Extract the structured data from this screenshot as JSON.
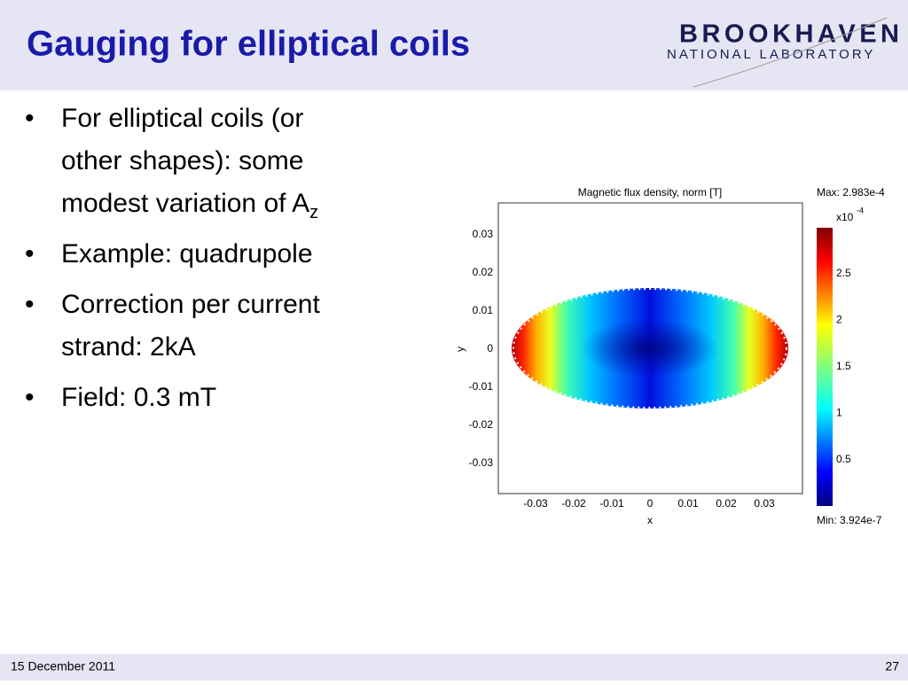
{
  "header": {
    "title": "Gauging for elliptical coils",
    "logo_top": "BROOKHAVEN",
    "logo_bottom": "NATIONAL LABORATORY"
  },
  "bullets": [
    {
      "lines": [
        "For elliptical coils (or",
        "other shapes): some",
        "modest variation of A"
      ],
      "subscript": "z"
    },
    {
      "lines": [
        "Example: quadrupole"
      ]
    },
    {
      "lines": [
        "Correction per current",
        "strand: 2kA"
      ]
    },
    {
      "lines": [
        "Field: 0.3 mT"
      ]
    }
  ],
  "figure": {
    "title": "Magnetic flux density, norm [T]",
    "x_label": "x",
    "y_label": "y",
    "x_ticks": [
      "-0.03",
      "-0.02",
      "-0.01",
      "0",
      "0.01",
      "0.02",
      "0.03"
    ],
    "y_ticks": [
      "0.03",
      "0.02",
      "0.01",
      "0",
      "-0.01",
      "-0.02",
      "-0.03"
    ],
    "colorbar": {
      "max": "Max: 2.983e-4",
      "min": "Min: 3.924e-7",
      "scale": "x10",
      "exponent": "-4",
      "ticks": [
        "2.5",
        "2",
        "1.5",
        "1",
        "0.5"
      ]
    }
  },
  "footer": {
    "date": "15 December 2011",
    "page": "27"
  }
}
